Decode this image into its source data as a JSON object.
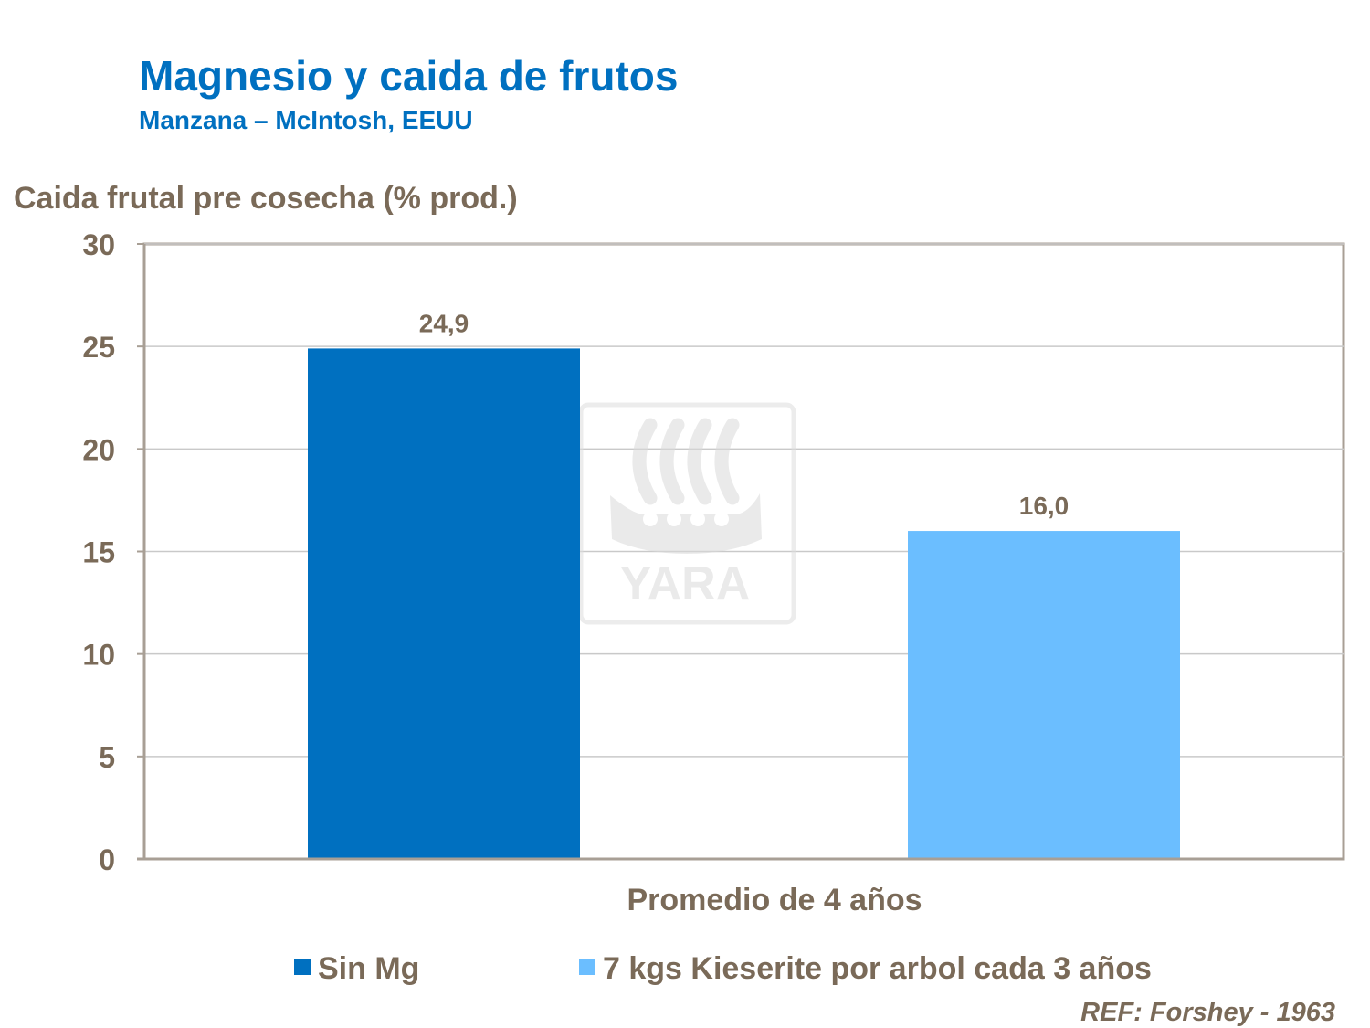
{
  "header": {
    "title": "Magnesio y caida de frutos",
    "subtitle": "Manzana – McIntosh, EEUU"
  },
  "watermark": {
    "text": "YARA",
    "icon": "yara-viking-ship-logo"
  },
  "reference": "REF: Forshey - 1963",
  "colors": {
    "series1": "#0070C0",
    "series2": "#6BBEFF",
    "text": "#7a6a58",
    "grid": "#c9c9c9",
    "axis": "#a89f95"
  },
  "chart_data": {
    "type": "bar",
    "title": "Magnesio y caida de frutos",
    "subtitle": "Manzana – McIntosh, EEUU",
    "ylabel": "Caida frutal pre cosecha (% prod.)",
    "xlabel": "Promedio de 4 años",
    "ylim": [
      0,
      30
    ],
    "yticks": [
      "0",
      "5",
      "10",
      "15",
      "20",
      "25",
      "30"
    ],
    "grid": true,
    "legend_position": "bottom",
    "categories": [
      "Promedio de 4 años"
    ],
    "series": [
      {
        "name": "Sin Mg",
        "values": [
          24.9
        ],
        "label": "24,9",
        "color": "#0070C0"
      },
      {
        "name": "7 kgs Kieserite por arbol cada 3 años",
        "values": [
          16.0
        ],
        "label": "16,0",
        "color": "#6BBEFF"
      }
    ]
  }
}
